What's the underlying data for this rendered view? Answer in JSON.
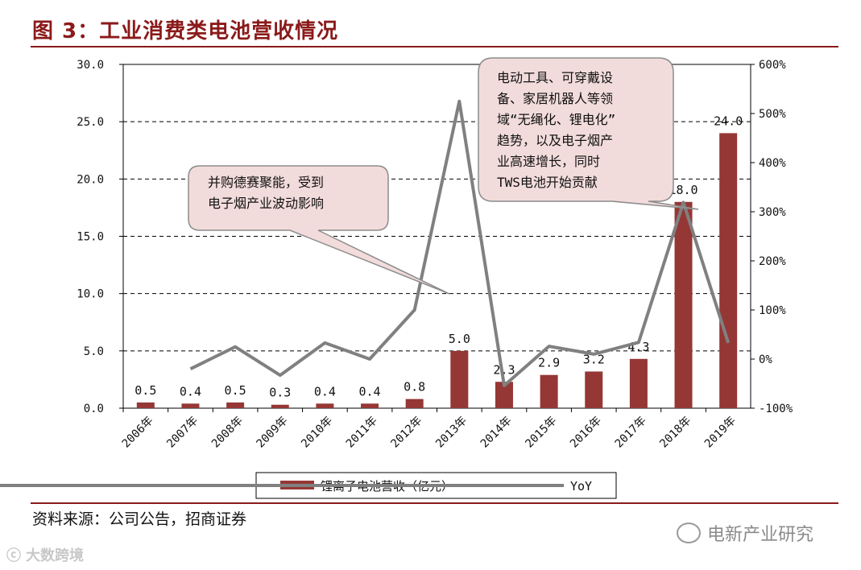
{
  "header": {
    "title": "图 3：工业消费类电池营收情况"
  },
  "footer": {
    "source": "资料来源：公司公告，招商证券"
  },
  "watermark": {
    "left_text": "大数跨境",
    "right_text": "电新产业研究"
  },
  "annotations": [
    "并购德赛聚能，受到\n电子烟产业波动影响",
    "电动工具、可穿戴设\n备、家居机器人等领\n域“无绳化、锂电化”\n趋势，以及电子烟产\n业高速增长，同时\nTWS电池开始贡献"
  ],
  "colors": {
    "bar": "#953735",
    "line": "#808080",
    "title": "#8b1a1a",
    "callout_fill": "#f2dcdb"
  },
  "chart_data": {
    "type": "bar",
    "categories": [
      "2006年",
      "2007年",
      "2008年",
      "2009年",
      "2010年",
      "2011年",
      "2012年",
      "2013年",
      "2014年",
      "2015年",
      "2016年",
      "2017年",
      "2018年",
      "2019年"
    ],
    "series": [
      {
        "name": "锂离子电池营收（亿元）",
        "type": "bar",
        "axis": "left",
        "values": [
          0.5,
          0.4,
          0.5,
          0.3,
          0.4,
          0.4,
          0.8,
          5.0,
          2.3,
          2.9,
          3.2,
          4.3,
          18.0,
          24.0
        ],
        "labels": [
          "0.5",
          "0.4",
          "0.5",
          "0.3",
          "0.4",
          "0.4",
          "0.8",
          "5.0",
          "2.3",
          "2.9",
          "3.2",
          "4.3",
          "18.0",
          "24.0"
        ]
      },
      {
        "name": "YoY",
        "type": "line",
        "axis": "right",
        "values": [
          null,
          -20,
          25,
          -33,
          33,
          0,
          100,
          525,
          -54,
          26,
          10,
          34,
          319,
          33
        ]
      }
    ],
    "y_left": {
      "range": [
        0,
        30
      ],
      "ticks": [
        "0.0",
        "5.0",
        "10.0",
        "15.0",
        "20.0",
        "25.0",
        "30.0"
      ]
    },
    "y_right": {
      "range": [
        -100,
        600
      ],
      "ticks": [
        "-100%",
        "0%",
        "100%",
        "200%",
        "300%",
        "400%",
        "500%",
        "600%"
      ]
    },
    "grid": "dashed horizontal",
    "legend": "bottom"
  }
}
